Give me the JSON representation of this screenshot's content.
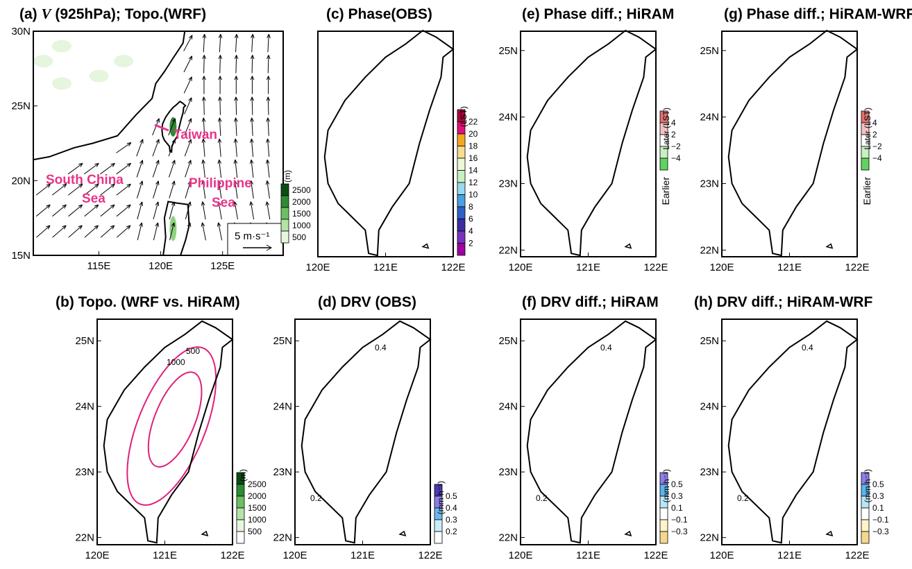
{
  "panels": [
    {
      "title": [
        "(a) ",
        "V",
        " (925hPa); Topo.(WRF)"
      ],
      "xticks": [
        "115E",
        "120E",
        "125E"
      ],
      "yticks": [
        "30N",
        "25N",
        "20N",
        "15N"
      ],
      "colorbar": {
        "unit": "(m)",
        "labels": [
          "2500",
          "2000",
          "1500",
          "1000",
          "500"
        ]
      },
      "annotations": {
        "taiwan": "Taiwan",
        "scs": [
          "South China",
          "Sea"
        ],
        "ps": [
          "Philippine",
          "Sea"
        ],
        "ref_vector": "5 m·s⁻¹"
      }
    },
    {
      "title": [
        "(b) Topo. (WRF vs. HiRAM)"
      ],
      "xticks": [
        "120E",
        "121E",
        "122E"
      ],
      "yticks": [
        "25N",
        "24N",
        "23N",
        "22N"
      ],
      "colorbar": {
        "unit": "(m)",
        "labels": [
          "2500",
          "2000",
          "1500",
          "1000",
          "500"
        ]
      },
      "contour_labels": [
        "500",
        "1000"
      ]
    },
    {
      "title": [
        "(c) Phase(OBS)"
      ],
      "xticks": [
        "120E",
        "121E",
        "122E"
      ],
      "yticks": [],
      "colorbar": {
        "unit": "(LST)",
        "labels": [
          "22",
          "20",
          "18",
          "16",
          "14",
          "12",
          "10",
          "8",
          "6",
          "4",
          "2"
        ]
      }
    },
    {
      "title": [
        "(d) DRV (OBS)"
      ],
      "xticks": [
        "120E",
        "121E",
        "122E"
      ],
      "yticks": [
        "25N",
        "24N",
        "23N",
        "22N"
      ],
      "colorbar": {
        "unit": "(mm h⁻¹)",
        "labels": [
          "0.5",
          "0.4",
          "0.3",
          "0.2"
        ]
      },
      "contour_labels": [
        "0.4",
        "0.2"
      ]
    },
    {
      "title": [
        "(e) Phase diff.; HiRAM"
      ],
      "xticks": [
        "120E",
        "121E",
        "122E"
      ],
      "yticks": [
        "25N",
        "24N",
        "23N",
        "22N"
      ],
      "colorbar": {
        "unit": "Later (LST)",
        "labels": [
          "4",
          "2",
          "−2",
          "−4"
        ],
        "unit2": "Earlier"
      }
    },
    {
      "title": [
        "(f) DRV diff.; HiRAM"
      ],
      "xticks": [
        "120E",
        "121E",
        "122E"
      ],
      "yticks": [
        "25N",
        "24N",
        "23N",
        "22N"
      ],
      "colorbar": {
        "unit": "(mm h⁻¹)",
        "labels": [
          "0.5",
          "0.3",
          "0.1",
          "−0.1",
          "−0.3"
        ]
      },
      "contour_labels": [
        "0.4",
        "0.2"
      ]
    },
    {
      "title": [
        "(g) Phase diff.; HiRAM-WRF"
      ],
      "xticks": [
        "120E",
        "121E",
        "122E"
      ],
      "yticks": [
        "25N",
        "24N",
        "23N",
        "22N"
      ],
      "colorbar": {
        "unit": "Later (LST)",
        "labels": [
          "4",
          "2",
          "−2",
          "−4"
        ],
        "unit2": "Earlier"
      }
    },
    {
      "title": [
        "(h) DRV diff.; HiRAM-WRF"
      ],
      "xticks": [
        "120E",
        "121E",
        "122E"
      ],
      "yticks": [
        "25N",
        "24N",
        "23N",
        "22N"
      ],
      "colorbar": {
        "unit": "(mm h⁻¹)",
        "labels": [
          "0.5",
          "0.3",
          "0.1",
          "−0.1",
          "−0.3"
        ]
      },
      "contour_labels": [
        "0.4",
        "0.2"
      ]
    }
  ]
}
